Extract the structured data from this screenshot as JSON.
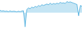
{
  "chart_data": {
    "type": "area",
    "values": [
      150,
      100,
      120,
      80,
      100,
      60,
      110,
      70,
      90,
      80,
      50,
      90,
      60,
      100,
      120,
      -900,
      200,
      300,
      250,
      350,
      300,
      400,
      350,
      450,
      400,
      500,
      450,
      500,
      550,
      500,
      600,
      520,
      580,
      540,
      600,
      560,
      650,
      600,
      620,
      580,
      700,
      650,
      680,
      640,
      600,
      560,
      520,
      -200,
      450,
      400
    ],
    "color": "#5ab4e0",
    "xlim": [
      0,
      49
    ],
    "ylim": [
      -1100,
      800
    ],
    "grid": false,
    "tick_labels": false
  }
}
